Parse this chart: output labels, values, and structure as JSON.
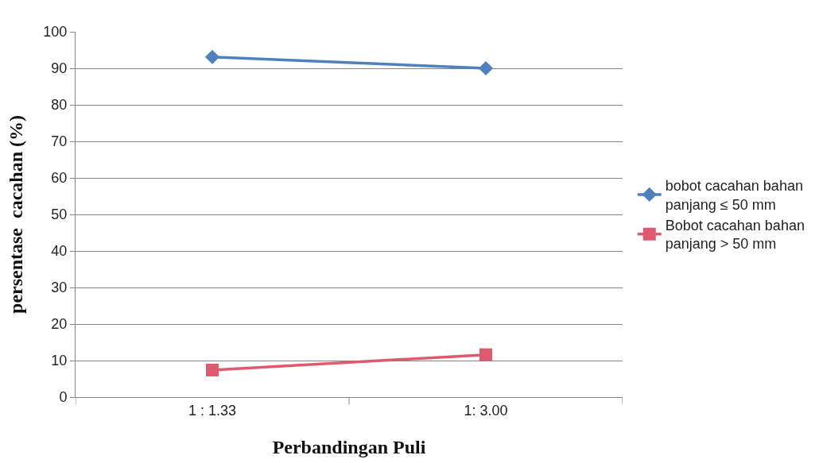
{
  "chart_data": {
    "type": "line",
    "xlabel": "Perbandingan Puli",
    "ylabel": "persentase  cacahan (%)",
    "categories": [
      "1 : 1.33",
      "1: 3.00"
    ],
    "series": [
      {
        "name": "bobot cacahan bahan\npanjang ≤ 50 mm",
        "color": "#4f81bd",
        "values": [
          93.1,
          90.0
        ],
        "marker": "diamond"
      },
      {
        "name": "Bobot cacahan bahan\npanjang > 50 mm",
        "color": "#e05a6e",
        "values": [
          7.4,
          11.6
        ],
        "marker": "square"
      }
    ],
    "ylim": [
      0,
      100
    ],
    "yticks": [
      0,
      10,
      20,
      30,
      40,
      50,
      60,
      70,
      80,
      90,
      100
    ],
    "grid": "y",
    "legend": "right",
    "line_style": "solid"
  }
}
